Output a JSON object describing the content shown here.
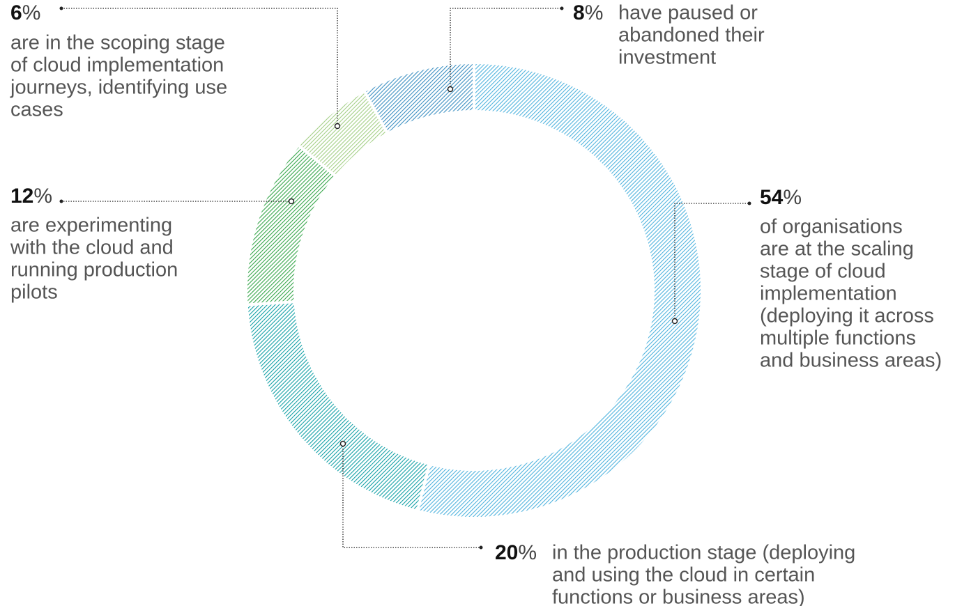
{
  "chart_data": {
    "type": "donut",
    "values": [
      54,
      20,
      12,
      6,
      8
    ],
    "value_labels": [
      "54%",
      "20%",
      "12%",
      "6%",
      "8%"
    ],
    "colors": [
      "#4fb3de",
      "#12a0a6",
      "#36a64a",
      "#a3cf86",
      "#3b8fc2"
    ],
    "descriptions": [
      [
        "of organisations",
        "are at the scaling",
        "stage of cloud",
        "implementation",
        "(deploying it across",
        "multiple functions",
        "and business areas)"
      ],
      [
        "in the production stage (deploying",
        "and using the cloud in certain",
        "functions or business areas)"
      ],
      [
        "are experimenting",
        "with the cloud and",
        "running production",
        "pilots"
      ],
      [
        "are in the scoping stage",
        "of cloud implementation",
        "journeys, identifying use",
        "cases"
      ],
      [
        "have paused or",
        "abandoned their",
        "investment"
      ]
    ]
  }
}
